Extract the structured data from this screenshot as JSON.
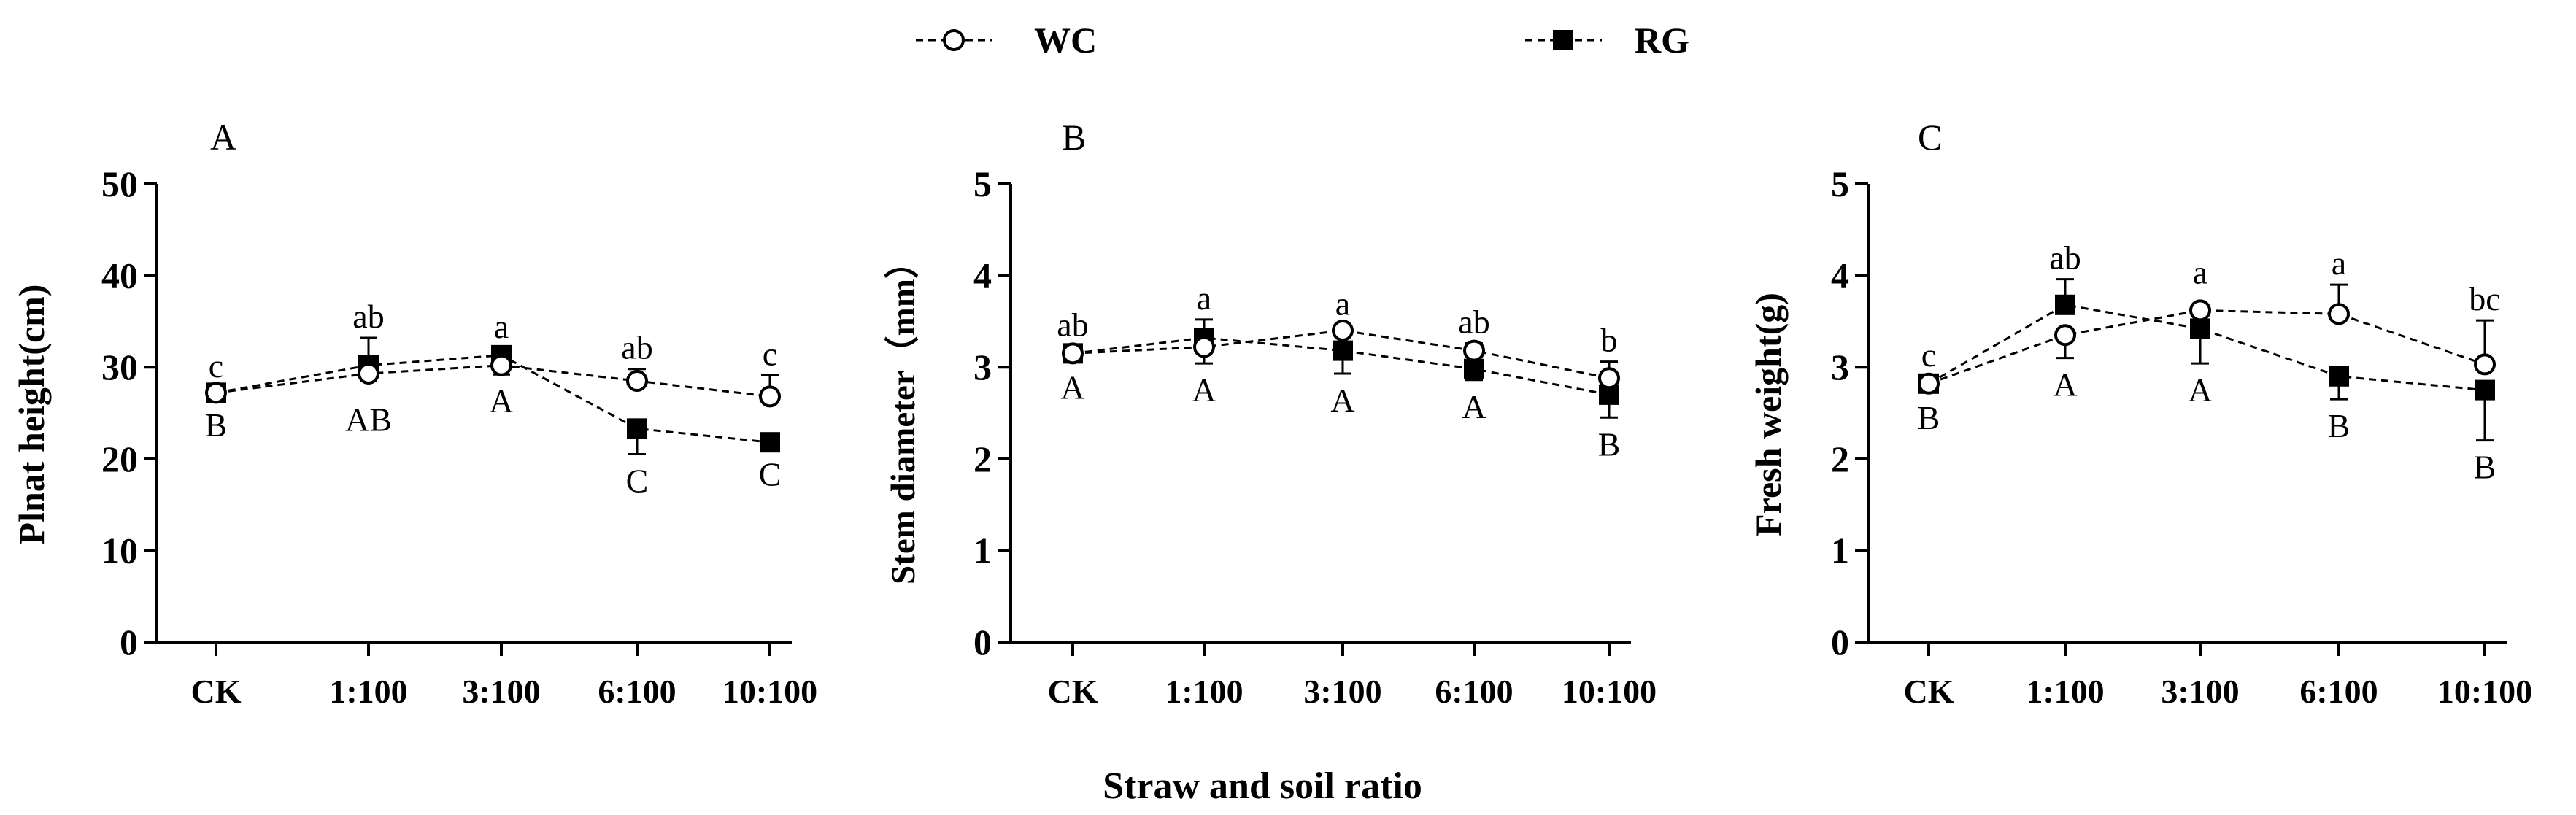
{
  "legend": {
    "items": [
      {
        "name": "WC",
        "marker": "open-circle-icon"
      },
      {
        "name": "RG",
        "marker": "filled-square-icon"
      }
    ]
  },
  "x_axis_title": "Straw and soil ratio",
  "colors": {
    "line": "#000000",
    "background": "#ffffff"
  },
  "chart_data": [
    {
      "type": "line",
      "panel_label": "A",
      "ylabel": "Plnat height(cm)",
      "xlabel": "",
      "categories": [
        "CK",
        "1:100",
        "3:100",
        "6:100",
        "10:100"
      ],
      "ylim": [
        0,
        50
      ],
      "yticks": [
        0,
        10,
        20,
        30,
        40,
        50
      ],
      "series": [
        {
          "name": "WC",
          "marker": "circle",
          "values": [
            27.2,
            29.3,
            30.2,
            28.5,
            26.8
          ],
          "errors": [
            0.6,
            0.8,
            1.0,
            1.3,
            2.3
          ],
          "labels": [
            "c",
            "ab",
            "a",
            "ab",
            "c"
          ]
        },
        {
          "name": "RG",
          "marker": "square",
          "values": [
            27.2,
            30.2,
            31.3,
            23.3,
            21.8
          ],
          "errors": [
            0.5,
            3.0,
            0.8,
            2.8,
            0.6
          ],
          "labels": [
            "B",
            "AB",
            "A",
            "C",
            "C"
          ]
        }
      ]
    },
    {
      "type": "line",
      "panel_label": "B",
      "ylabel": "Stem diameter（mm）",
      "xlabel": "",
      "categories": [
        "CK",
        "1:100",
        "3:100",
        "6:100",
        "10:100"
      ],
      "ylim": [
        0,
        5
      ],
      "yticks": [
        0,
        1,
        2,
        3,
        4,
        5
      ],
      "series": [
        {
          "name": "WC",
          "marker": "circle",
          "values": [
            3.15,
            3.22,
            3.4,
            3.18,
            2.88
          ],
          "errors": [
            0.08,
            0.18,
            0.06,
            0.08,
            0.18
          ],
          "labels": [
            "ab",
            "a",
            "a",
            "ab",
            "b"
          ]
        },
        {
          "name": "RG",
          "marker": "square",
          "values": [
            3.15,
            3.32,
            3.18,
            2.98,
            2.7
          ],
          "errors": [
            0.08,
            0.2,
            0.25,
            0.12,
            0.25
          ],
          "labels": [
            "A",
            "A",
            "A",
            "A",
            "B"
          ]
        }
      ]
    },
    {
      "type": "line",
      "panel_label": "C",
      "ylabel": "Fresh weight(g)",
      "xlabel": "",
      "categories": [
        "CK",
        "1:100",
        "3:100",
        "6:100",
        "10:100"
      ],
      "ylim": [
        0,
        5
      ],
      "yticks": [
        0,
        1,
        2,
        3,
        4,
        5
      ],
      "series": [
        {
          "name": "WC",
          "marker": "circle",
          "values": [
            2.82,
            3.35,
            3.62,
            3.58,
            3.03
          ],
          "errors": [
            0.08,
            0.25,
            0.05,
            0.32,
            0.48
          ],
          "labels": [
            "c",
            "ab",
            "a",
            "a",
            "bc"
          ]
        },
        {
          "name": "RG",
          "marker": "square",
          "values": [
            2.82,
            3.68,
            3.42,
            2.9,
            2.75
          ],
          "errors": [
            0.08,
            0.28,
            0.38,
            0.25,
            0.55
          ],
          "labels": [
            "B",
            "A",
            "A",
            "B",
            "B"
          ]
        }
      ]
    }
  ]
}
